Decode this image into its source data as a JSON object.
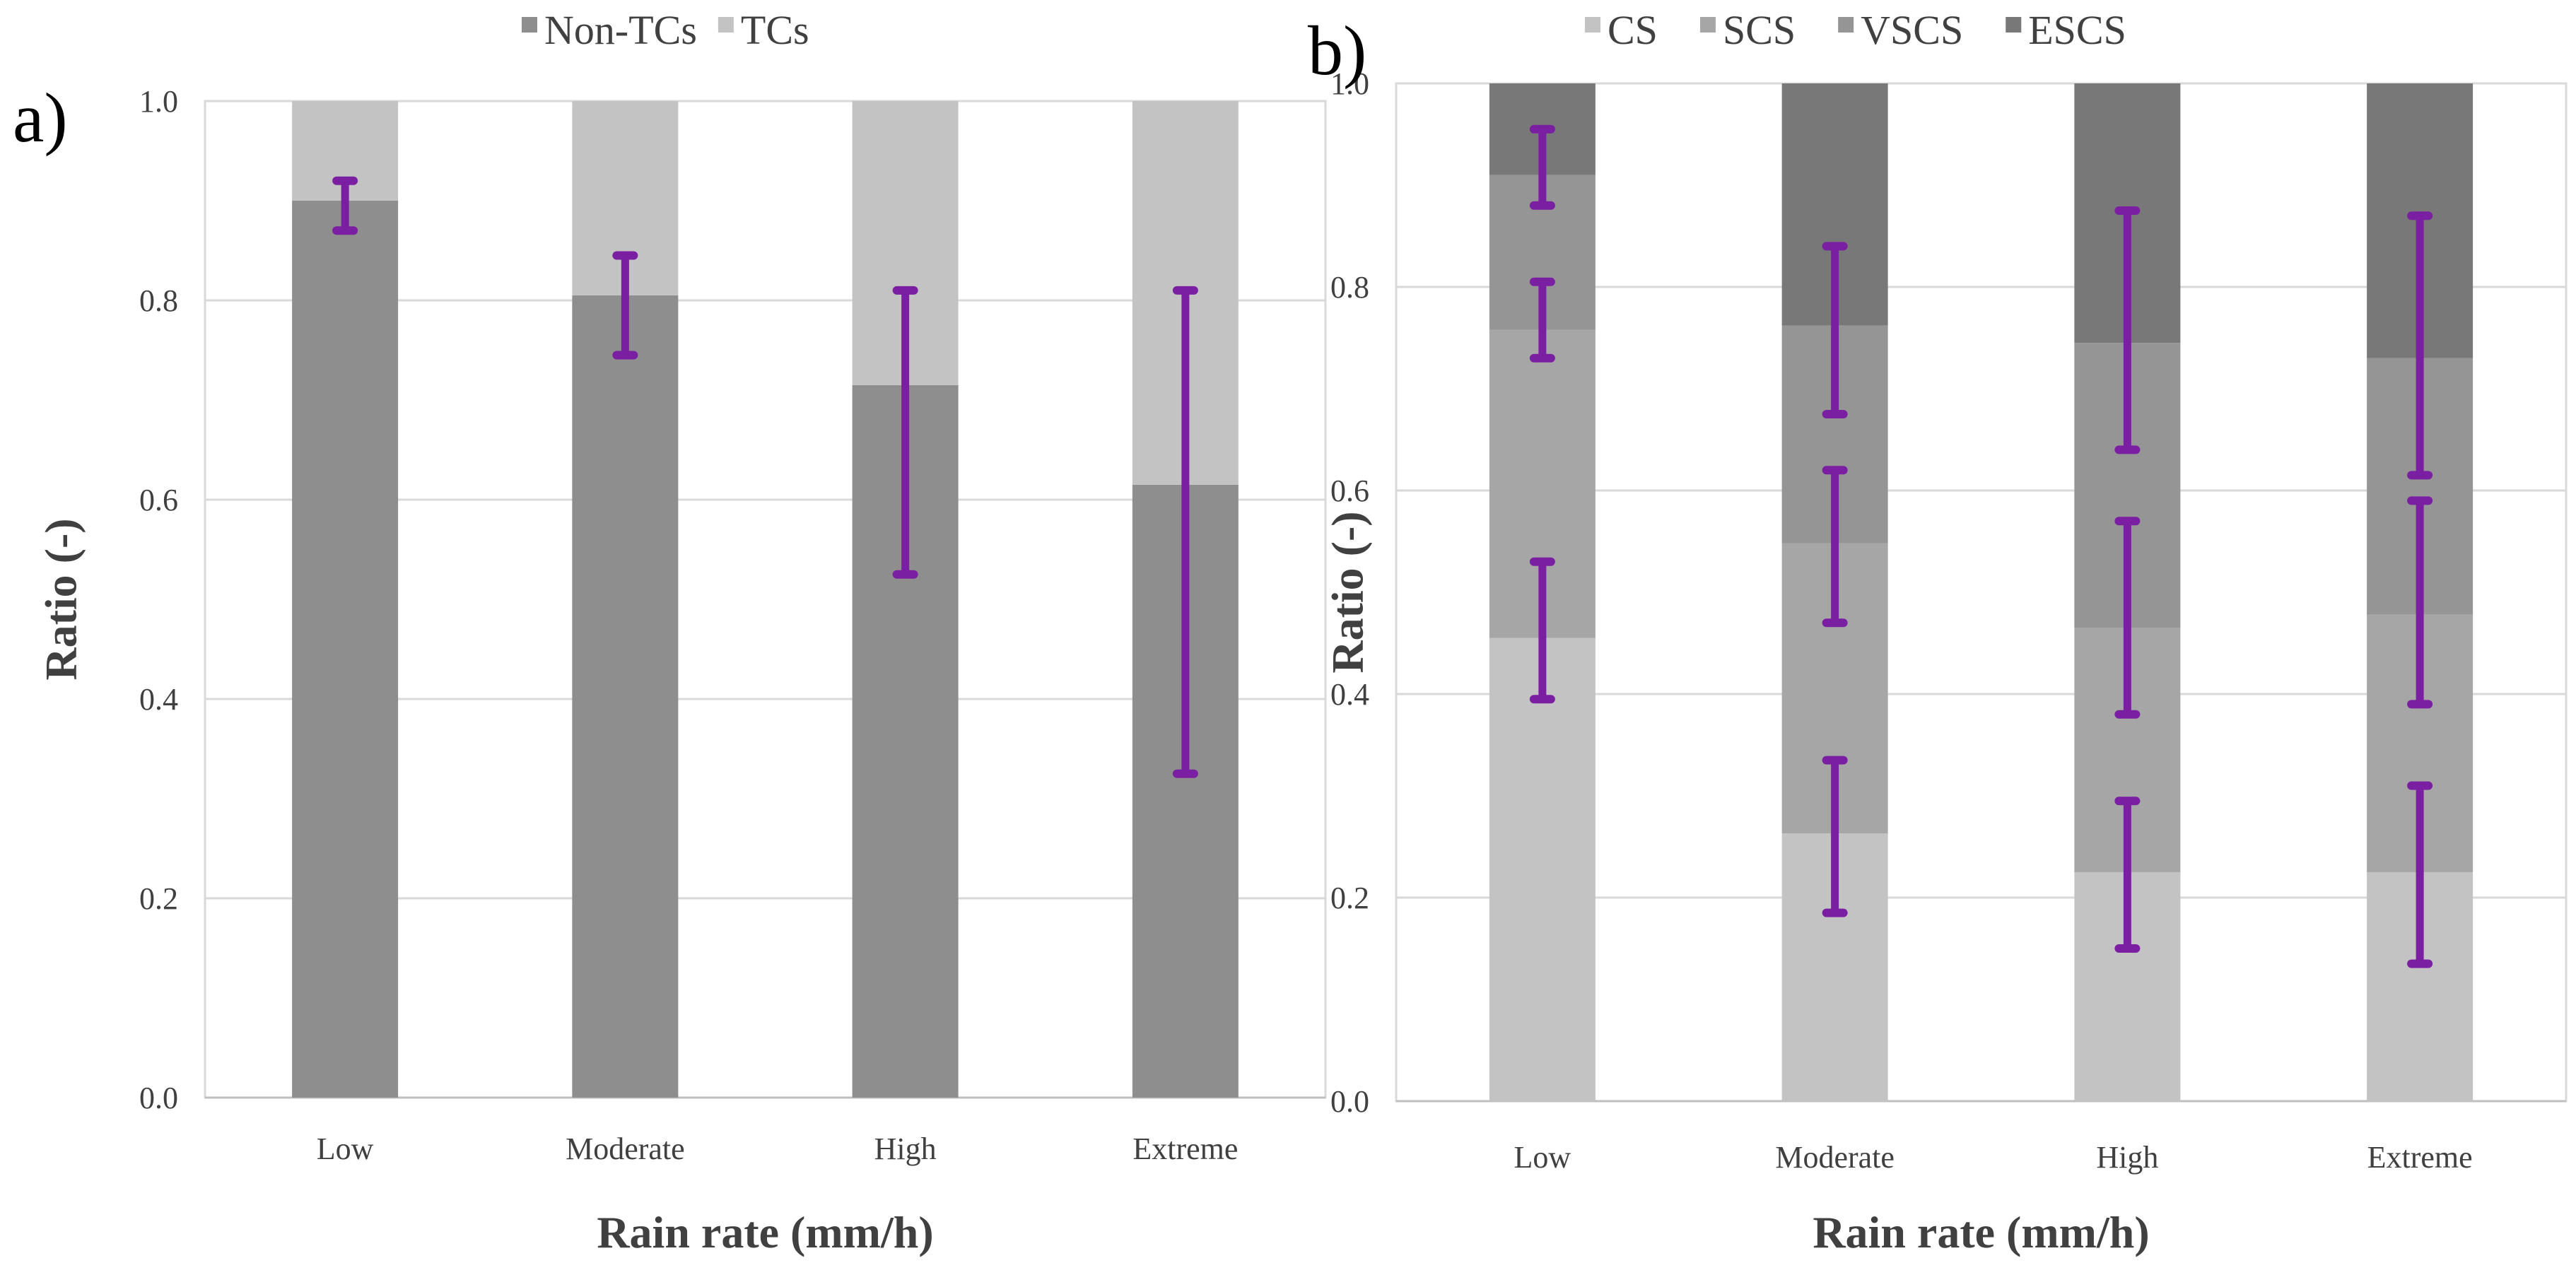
{
  "colors": {
    "non_tcs": "#8e8e8e",
    "tcs": "#c3c3c3",
    "cs": "#c3c3c3",
    "scs": "#a6a6a6",
    "vscs": "#959595",
    "escs": "#787878",
    "error_bar": "#7b1fa2"
  },
  "chart_data": [
    {
      "panel": "a)",
      "type": "bar",
      "stacked": true,
      "categories": [
        "Low",
        "Moderate",
        "High",
        "Extreme"
      ],
      "series": [
        {
          "name": "Non-TCs",
          "color_key": "non_tcs",
          "values": [
            0.9,
            0.805,
            0.715,
            0.615
          ]
        },
        {
          "name": "TCs",
          "color_key": "tcs",
          "values": [
            0.1,
            0.195,
            0.285,
            0.385
          ]
        }
      ],
      "error_bars": [
        {
          "category": "Low",
          "low": 0.87,
          "high": 0.92
        },
        {
          "category": "Moderate",
          "low": 0.745,
          "high": 0.845
        },
        {
          "category": "High",
          "low": 0.525,
          "high": 0.81
        },
        {
          "category": "Extreme",
          "low": 0.325,
          "high": 0.81
        }
      ],
      "xlabel": "Rain rate (mm/h)",
      "ylabel": "Ratio (-)",
      "ylim": [
        0,
        1.0
      ],
      "yticks": [
        "0.0",
        "0.2",
        "0.4",
        "0.6",
        "0.8",
        "1.0"
      ],
      "grid": true,
      "legend": "top-center"
    },
    {
      "panel": "b)",
      "type": "bar",
      "stacked": true,
      "categories": [
        "Low",
        "Moderate",
        "High",
        "Extreme"
      ],
      "series": [
        {
          "name": "CS",
          "color_key": "cs",
          "values": [
            0.455,
            0.263,
            0.225,
            0.225
          ]
        },
        {
          "name": "SCS",
          "color_key": "scs",
          "values": [
            0.303,
            0.285,
            0.24,
            0.253
          ]
        },
        {
          "name": "VSCS",
          "color_key": "vscs",
          "values": [
            0.152,
            0.214,
            0.28,
            0.252
          ]
        },
        {
          "name": "ESCS",
          "color_key": "escs",
          "values": [
            0.09,
            0.238,
            0.255,
            0.27
          ]
        }
      ],
      "error_bars": [
        {
          "category": "Low",
          "low": 0.395,
          "high": 0.53
        },
        {
          "category": "Low",
          "low": 0.73,
          "high": 0.805
        },
        {
          "category": "Low",
          "low": 0.88,
          "high": 0.955
        },
        {
          "category": "Moderate",
          "low": 0.185,
          "high": 0.335
        },
        {
          "category": "Moderate",
          "low": 0.47,
          "high": 0.62
        },
        {
          "category": "Moderate",
          "low": 0.675,
          "high": 0.84
        },
        {
          "category": "High",
          "low": 0.15,
          "high": 0.295
        },
        {
          "category": "High",
          "low": 0.38,
          "high": 0.57
        },
        {
          "category": "High",
          "low": 0.64,
          "high": 0.875
        },
        {
          "category": "Extreme",
          "low": 0.135,
          "high": 0.31
        },
        {
          "category": "Extreme",
          "low": 0.39,
          "high": 0.59
        },
        {
          "category": "Extreme",
          "low": 0.615,
          "high": 0.87
        }
      ],
      "xlabel": "Rain rate (mm/h)",
      "ylabel": "Ratio (-)",
      "ylim": [
        0,
        1.0
      ],
      "yticks": [
        "0.0",
        "0.2",
        "0.4",
        "0.6",
        "0.8",
        "1.0"
      ],
      "grid": true,
      "legend": "top-center"
    }
  ]
}
